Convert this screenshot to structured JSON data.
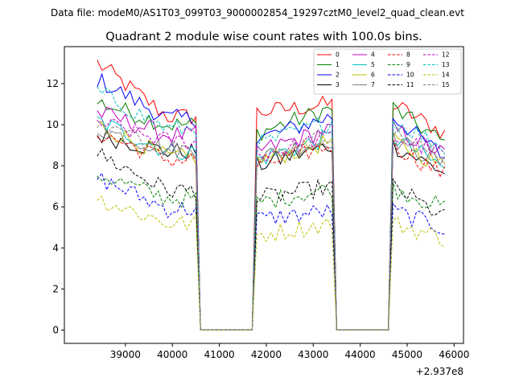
{
  "header": {
    "suptitle": "Data file: modeM0/AS1T03_099T03_9000002854_19297cztM0_level2_quad_clean.evt"
  },
  "chart_data": {
    "type": "line",
    "title": "Quadrant 2 module wise count rates with 100.0s bins.",
    "xlabel": "",
    "ylabel": "",
    "x_offset_label": "+2.937e8",
    "xlim": [
      37700,
      46200
    ],
    "ylim": [
      -0.65,
      13.8
    ],
    "xticks": [
      39000,
      40000,
      41000,
      42000,
      43000,
      44000,
      45000,
      46000
    ],
    "yticks": [
      0,
      2,
      4,
      6,
      8,
      10,
      12
    ],
    "legend_position": "top-right",
    "segments": [
      {
        "start": 38400,
        "end": 40500
      },
      {
        "start": 41800,
        "end": 43400
      },
      {
        "start": 44700,
        "end": 45850
      }
    ],
    "series": [
      {
        "name": "0",
        "color": "#ff0000",
        "dash": "solid",
        "levels": [
          13.0,
          10.4,
          10.6,
          11.0,
          9.5
        ]
      },
      {
        "name": "1",
        "color": "#008000",
        "dash": "solid",
        "levels": [
          11.1,
          10.0,
          9.6,
          10.8,
          9.0
        ]
      },
      {
        "name": "2",
        "color": "#0000ff",
        "dash": "solid",
        "levels": [
          12.2,
          10.3,
          9.3,
          10.4,
          8.3
        ]
      },
      {
        "name": "3",
        "color": "#000000",
        "dash": "solid",
        "levels": [
          9.5,
          8.7,
          8.0,
          9.0,
          7.6
        ]
      },
      {
        "name": "4",
        "color": "#bf00bf",
        "dash": "solid",
        "levels": [
          10.6,
          9.5,
          8.7,
          9.8,
          8.5
        ]
      },
      {
        "name": "5",
        "color": "#00bfbf",
        "dash": "solid",
        "levels": [
          10.2,
          8.7,
          8.3,
          9.4,
          7.8
        ]
      },
      {
        "name": "6",
        "color": "#bfbf00",
        "dash": "solid",
        "levels": [
          10.0,
          8.4,
          8.2,
          9.2,
          7.9
        ]
      },
      {
        "name": "7",
        "color": "#808080",
        "dash": "solid",
        "levels": [
          9.8,
          8.8,
          8.4,
          9.3,
          8.0
        ]
      },
      {
        "name": "8",
        "color": "#ff0000",
        "dash": "dashed",
        "levels": [
          9.6,
          8.3,
          8.0,
          9.0,
          7.5
        ]
      },
      {
        "name": "9",
        "color": "#008000",
        "dash": "dashed",
        "levels": [
          7.6,
          6.4,
          6.2,
          6.9,
          5.9
        ]
      },
      {
        "name": "10",
        "color": "#0000ff",
        "dash": "dashed",
        "levels": [
          7.4,
          5.9,
          5.4,
          5.8,
          4.9
        ]
      },
      {
        "name": "11",
        "color": "#000000",
        "dash": "dashed",
        "levels": [
          8.6,
          6.8,
          6.4,
          7.0,
          5.4
        ]
      },
      {
        "name": "12",
        "color": "#bf00bf",
        "dash": "dashed",
        "levels": [
          10.1,
          9.2,
          8.5,
          9.4,
          8.5
        ]
      },
      {
        "name": "13",
        "color": "#00bfbf",
        "dash": "dashed",
        "levels": [
          11.6,
          9.8,
          9.0,
          10.2,
          8.8
        ]
      },
      {
        "name": "14",
        "color": "#bfbf00",
        "dash": "dashed",
        "levels": [
          6.4,
          5.2,
          4.6,
          5.2,
          4.4
        ]
      },
      {
        "name": "15",
        "color": "#808080",
        "dash": "dashed",
        "levels": [
          10.0,
          8.9,
          8.3,
          9.6,
          8.2
        ]
      }
    ]
  }
}
